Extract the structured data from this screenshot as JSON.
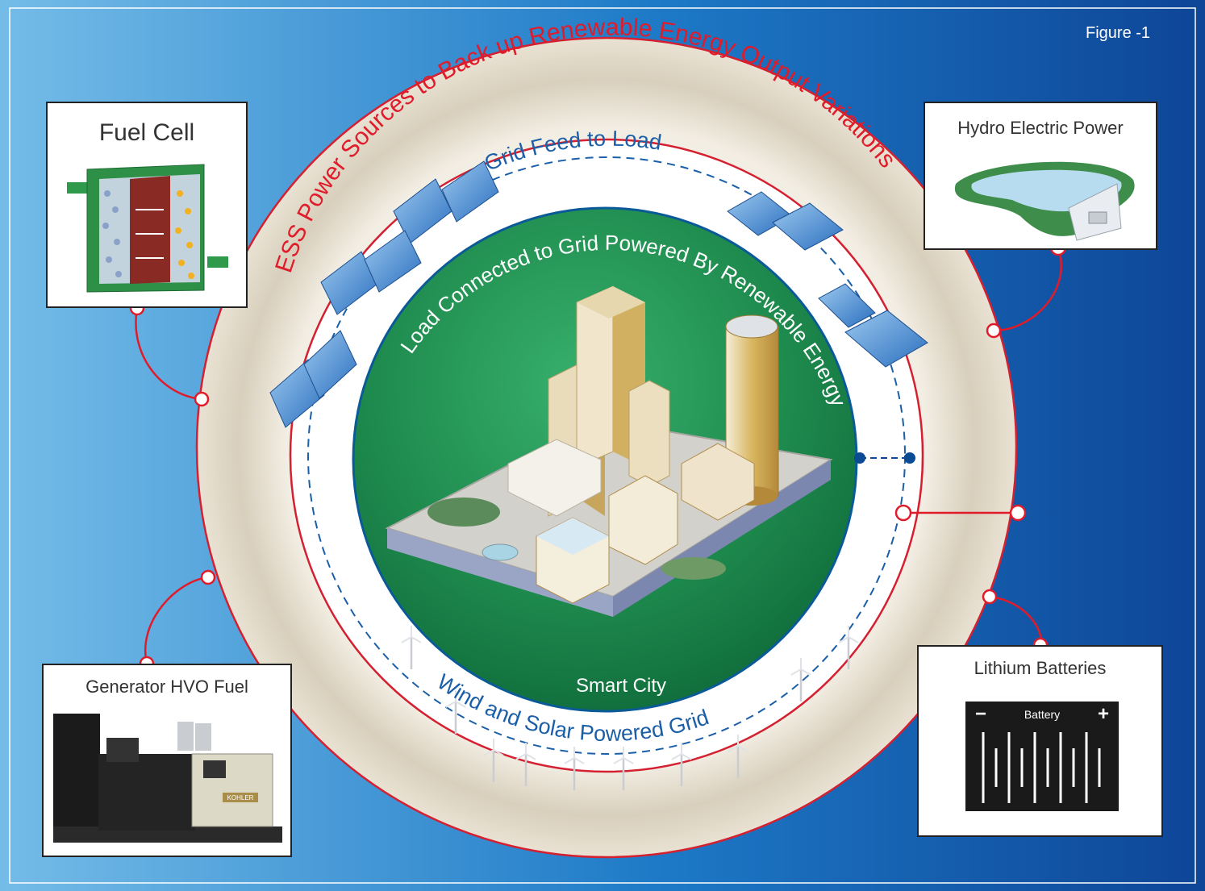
{
  "figure_label": "Figure -1",
  "ring_title": "ESS Power Sources to Back up Renewable Energy Output Variations",
  "grid_feed_label": "Grid Feed to Load",
  "load_label": "Load Connected to Grid Powered By Renewable Energy",
  "smart_city_label": "Smart City",
  "wind_solar_label": "Wind and Solar Powered Grid",
  "sources": {
    "fuel_cell": {
      "title": "Fuel Cell"
    },
    "hydro": {
      "title": "Hydro Electric Power"
    },
    "generator": {
      "title": "Generator HVO Fuel",
      "brand": "KOHLER"
    },
    "lithium": {
      "title": "Lithium Batteries",
      "battery_label": "Battery",
      "minus": "−",
      "plus": "+"
    }
  },
  "colors": {
    "background_left": "#6fb7e6",
    "background_right": "#0d4a9e",
    "ring_outline": "#d42030",
    "beige_ring": "#ddd5c3",
    "city_green": "#1e8a4d",
    "grid_line": "#1a5fa8",
    "label_red": "#e01b2a"
  }
}
